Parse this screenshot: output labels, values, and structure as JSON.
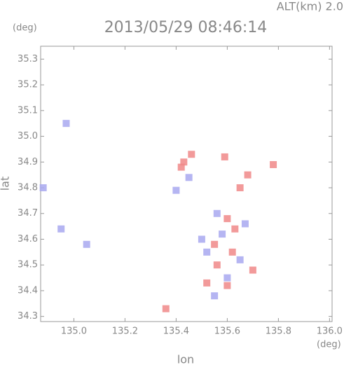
{
  "chart_data": {
    "type": "scatter",
    "title": "2013/05/29 08:46:14",
    "subtitle": "ALT(km) 2.0",
    "y_unit": "(deg)",
    "x_unit": "(deg)",
    "x_label": "lon",
    "y_label": "lat",
    "xlim": [
      134.87,
      136.01
    ],
    "ylim": [
      34.28,
      35.35
    ],
    "xticks": [
      {
        "value": 135.0,
        "label": "135.0"
      },
      {
        "value": 135.2,
        "label": "135.2"
      },
      {
        "value": 135.4,
        "label": "135.4"
      },
      {
        "value": 135.6,
        "label": "135.6"
      },
      {
        "value": 135.8,
        "label": "135.8"
      },
      {
        "value": 136.0,
        "label": "136.0"
      }
    ],
    "yticks": [
      {
        "value": 34.3,
        "label": "34.3"
      },
      {
        "value": 34.4,
        "label": "34.4"
      },
      {
        "value": 34.5,
        "label": "34.5"
      },
      {
        "value": 34.6,
        "label": "34.6"
      },
      {
        "value": 34.7,
        "label": "34.7"
      },
      {
        "value": 34.8,
        "label": "34.8"
      },
      {
        "value": 34.9,
        "label": "34.9"
      },
      {
        "value": 35.0,
        "label": "35.0"
      },
      {
        "value": 35.1,
        "label": "35.1"
      },
      {
        "value": 35.2,
        "label": "35.2"
      },
      {
        "value": 35.3,
        "label": "35.3"
      }
    ],
    "series": [
      {
        "color": "#a8a8f0",
        "x": [
          134.97,
          134.88,
          134.95,
          135.05,
          135.4,
          135.45,
          135.56,
          135.58,
          135.52,
          135.65,
          135.6,
          135.55,
          135.67,
          135.5
        ],
        "y": [
          35.05,
          34.8,
          34.64,
          34.58,
          34.79,
          34.84,
          34.7,
          34.62,
          34.55,
          34.52,
          34.45,
          34.38,
          34.66,
          34.6
        ]
      },
      {
        "color": "#f08888",
        "x": [
          135.43,
          135.46,
          135.42,
          135.65,
          135.68,
          135.6,
          135.63,
          135.55,
          135.62,
          135.56,
          135.7,
          135.6,
          135.52,
          135.36,
          135.59,
          135.78
        ],
        "y": [
          34.9,
          34.93,
          34.88,
          34.8,
          34.85,
          34.68,
          34.64,
          34.58,
          34.55,
          34.5,
          34.48,
          34.42,
          34.43,
          34.33,
          34.92,
          34.89
        ]
      }
    ]
  }
}
